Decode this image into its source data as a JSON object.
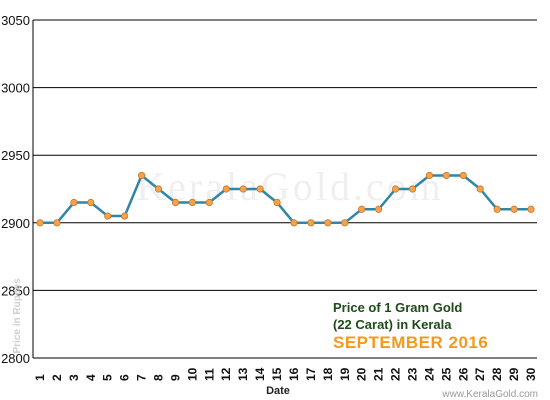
{
  "chart_data": {
    "type": "line",
    "x": [
      1,
      2,
      3,
      4,
      5,
      6,
      7,
      8,
      9,
      10,
      11,
      12,
      13,
      14,
      15,
      16,
      17,
      18,
      19,
      20,
      21,
      22,
      23,
      24,
      25,
      26,
      27,
      28,
      29,
      30
    ],
    "series": [
      {
        "values": [
          2900,
          2900,
          2915,
          2915,
          2905,
          2905,
          2935,
          2925,
          2915,
          2915,
          2915,
          2925,
          2925,
          2925,
          2915,
          2900,
          2900,
          2900,
          2900,
          2910,
          2910,
          2925,
          2925,
          2935,
          2935,
          2935,
          2925,
          2910,
          2910,
          2910
        ]
      }
    ],
    "xlabel": "Date",
    "ylabel": "Price in Rupees",
    "ylim": [
      2800,
      3050
    ],
    "yticks": [
      2800,
      2850,
      2900,
      2950,
      3000,
      3050
    ],
    "grid": true,
    "title_line1": "Price of 1 Gram Gold",
    "title_line2": "(22 Carat) in Kerala",
    "subtitle": "SEPTEMBER 2016",
    "line_color": "#2f86a6",
    "marker_color": "#f5a24a",
    "caption_color": "#1f4a1a",
    "subtitle_color": "#f39a1e"
  },
  "watermark": "KeralaGold.com",
  "footer": "www.KeralaGold.com"
}
